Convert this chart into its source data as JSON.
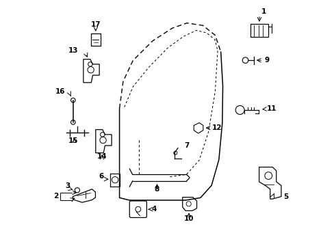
{
  "background_color": "#ffffff",
  "line_color": "#000000",
  "text_color": "#000000",
  "dpi": 100,
  "figsize": [
    4.89,
    3.6
  ]
}
